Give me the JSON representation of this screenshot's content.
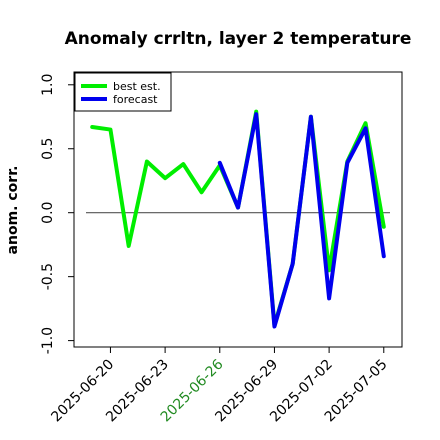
{
  "chart_data": {
    "type": "line",
    "title": "Anomaly crrltn, layer 2 temperature",
    "xlabel": "",
    "ylabel": "anom. corr.",
    "ylim": [
      -1.05,
      1.1
    ],
    "x_ticks": [
      {
        "label": "2025-06-20",
        "value": "2025-06-20",
        "color": "#000000"
      },
      {
        "label": "2025-06-23",
        "value": "2025-06-23",
        "color": "#000000"
      },
      {
        "label": "2025-06-26",
        "value": "2025-06-26",
        "color": "#228B22"
      },
      {
        "label": "2025-06-29",
        "value": "2025-06-29",
        "color": "#000000"
      },
      {
        "label": "2025-07-02",
        "value": "2025-07-02",
        "color": "#000000"
      },
      {
        "label": "2025-07-05",
        "value": "2025-07-05",
        "color": "#000000"
      }
    ],
    "y_ticks": [
      {
        "label": "1.0",
        "value": 1.0
      },
      {
        "label": "0.5",
        "value": 0.5
      },
      {
        "label": "0.0",
        "value": 0.0
      },
      {
        "label": "-0.5",
        "value": -0.5
      },
      {
        "label": "-1.0",
        "value": -1.0
      }
    ],
    "xlim": [
      "2025-06-18",
      "2025-07-06"
    ],
    "zero_line": true,
    "legend": {
      "placement": "top-left"
    },
    "series": [
      {
        "name": "best est.",
        "color": "#00ee00",
        "points": [
          [
            "2025-06-19",
            0.67
          ],
          [
            "2025-06-20",
            0.65
          ],
          [
            "2025-06-21",
            -0.26
          ],
          [
            "2025-06-22",
            0.4
          ],
          [
            "2025-06-23",
            0.27
          ],
          [
            "2025-06-24",
            0.38
          ],
          [
            "2025-06-25",
            0.16
          ],
          [
            "2025-06-26",
            0.37
          ],
          [
            "2025-06-27",
            0.04
          ],
          [
            "2025-06-28",
            0.79
          ],
          [
            "2025-06-29",
            -0.88
          ],
          [
            "2025-06-30",
            -0.4
          ],
          [
            "2025-07-01",
            0.75
          ],
          [
            "2025-07-02",
            -0.45
          ],
          [
            "2025-07-03",
            0.4
          ],
          [
            "2025-07-04",
            0.7
          ],
          [
            "2025-07-05",
            -0.11
          ]
        ]
      },
      {
        "name": "forecast",
        "color": "#0000ee",
        "points": [
          [
            "2025-06-26",
            0.39
          ],
          [
            "2025-06-27",
            0.04
          ],
          [
            "2025-06-28",
            0.77
          ],
          [
            "2025-06-29",
            -0.89
          ],
          [
            "2025-06-30",
            -0.4
          ],
          [
            "2025-07-01",
            0.75
          ],
          [
            "2025-07-02",
            -0.67
          ],
          [
            "2025-07-03",
            0.39
          ],
          [
            "2025-07-04",
            0.66
          ],
          [
            "2025-07-05",
            -0.34
          ]
        ]
      }
    ]
  }
}
